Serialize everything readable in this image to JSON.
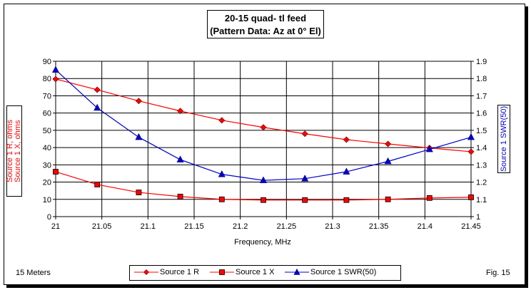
{
  "chart_data": {
    "type": "line",
    "title": "20-15 quad- tl feed",
    "subtitle": "(Pattern Data: Az at 0° El)",
    "xlabel": "Frequency, MHz",
    "ylabel_left": [
      "Source 1 R,  ohms",
      "Source 1 X,  ohms"
    ],
    "ylabel_right": "Source 1 SWR(50)",
    "x_tick_labels": [
      "21",
      "21.05",
      "21.1",
      "21.15",
      "21.2",
      "21.25",
      "21.3",
      "21.35",
      "21.4",
      "21.45"
    ],
    "xlim": [
      21,
      21.45
    ],
    "ylim_left": [
      0,
      90
    ],
    "y_left_ticks": [
      "0",
      "10",
      "20",
      "30",
      "40",
      "50",
      "60",
      "70",
      "80",
      "90"
    ],
    "ylim_right": [
      1,
      1.9
    ],
    "y_right_ticks": [
      "1",
      "1.1",
      "1.2",
      "1.3",
      "1.4",
      "1.5",
      "1.6",
      "1.7",
      "1.8",
      "1.9"
    ],
    "grid": "horizontal and vertical",
    "legend_position": "bottom",
    "x": [
      21.0,
      21.045,
      21.09,
      21.135,
      21.18,
      21.225,
      21.27,
      21.315,
      21.36,
      21.405,
      21.45
    ],
    "series": [
      {
        "name": "Source 1 R",
        "axis": "left",
        "color": "#ff0000",
        "marker": "diamond",
        "values": [
          79.7,
          73.5,
          67.0,
          61.2,
          55.8,
          51.7,
          48.0,
          44.6,
          42.1,
          39.8,
          37.6
        ]
      },
      {
        "name": "Source 1 X",
        "axis": "left",
        "color": "#ff0000",
        "marker": "square",
        "values": [
          26.0,
          18.6,
          14.0,
          11.6,
          10.0,
          9.6,
          9.6,
          9.6,
          10.0,
          10.8,
          11.2
        ]
      },
      {
        "name": "Source 1 SWR(50)",
        "axis": "right",
        "color": "#0000cc",
        "marker": "triangle",
        "values": [
          1.85,
          1.63,
          1.46,
          1.33,
          1.245,
          1.21,
          1.22,
          1.26,
          1.32,
          1.39,
          1.46
        ]
      }
    ]
  },
  "labels": {
    "left_note": "15 Meters",
    "right_note": "Fig. 15"
  }
}
